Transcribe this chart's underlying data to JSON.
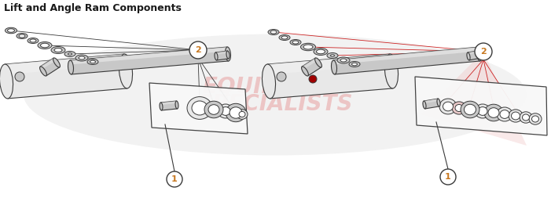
{
  "title": "Lift and Angle Ram Components",
  "title_fontsize": 9,
  "title_fontweight": "bold",
  "title_color": "#1a1a1a",
  "bg_color": "#ffffff",
  "line_color": "#3a3a3a",
  "label_circle_color": "#ffffff",
  "label_circle_edge": "#3a3a3a",
  "label_text_color": "#c87820",
  "red_line_color": "#cc2222",
  "red_fill_color": "#f0c0c0",
  "component_fill_light": "#e8e8e8",
  "component_fill_mid": "#c8c8c8",
  "component_fill_dark": "#a0a0a0",
  "component_edge": "#3a3a3a",
  "watermark_color": "#e8a0a0",
  "watermark_alpha": 0.55,
  "ellipse_gray_color": "#c0c0c0",
  "ellipse_gray_alpha": 0.2
}
